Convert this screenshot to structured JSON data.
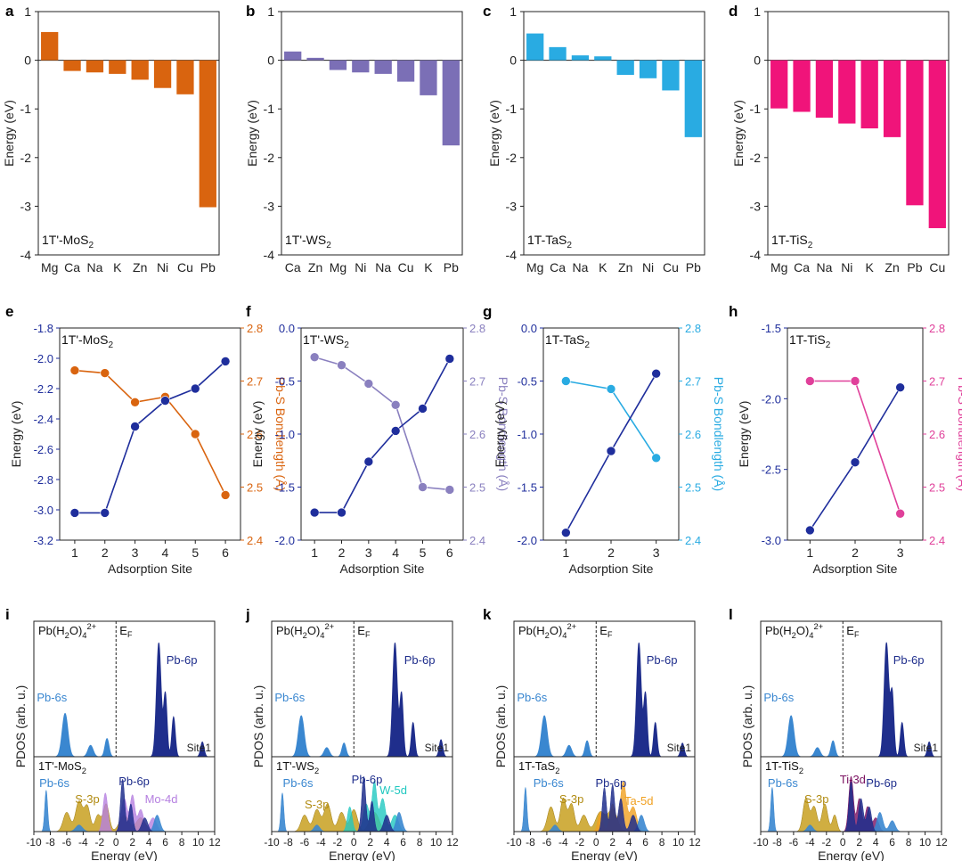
{
  "chart_data": [
    {
      "panel": "a",
      "type": "bar",
      "label": "1T'-MoS2",
      "label_parts": [
        "1T'-MoS",
        "2",
        ""
      ],
      "color": "#D9640F",
      "categories": [
        "Mg",
        "Ca",
        "Na",
        "K",
        "Zn",
        "Ni",
        "Cu",
        "Pb"
      ],
      "values": [
        0.58,
        -0.22,
        -0.25,
        -0.28,
        -0.4,
        -0.57,
        -0.7,
        -3.02
      ],
      "ylabel": "Energy (eV)",
      "ylim": [
        -4,
        1
      ],
      "yticks": [
        1,
        0,
        -1,
        -2,
        -3,
        -4
      ]
    },
    {
      "panel": "b",
      "type": "bar",
      "label": "1T'-WS2",
      "label_parts": [
        "1T'-WS",
        "2",
        ""
      ],
      "color": "#7B6FB6",
      "categories": [
        "Ca",
        "Zn",
        "Mg",
        "Ni",
        "Na",
        "Cu",
        "K",
        "Pb"
      ],
      "values": [
        0.18,
        0.05,
        -0.2,
        -0.25,
        -0.28,
        -0.44,
        -0.72,
        -1.75
      ],
      "ylabel": "Energy (eV)",
      "ylim": [
        -4,
        1
      ],
      "yticks": [
        1,
        0,
        -1,
        -2,
        -3,
        -4
      ]
    },
    {
      "panel": "c",
      "type": "bar",
      "label": "1T-TaS2",
      "label_parts": [
        "1T-TaS",
        "2",
        ""
      ],
      "color": "#29ABE2",
      "categories": [
        "Mg",
        "Ca",
        "Na",
        "K",
        "Zn",
        "Ni",
        "Cu",
        "Pb"
      ],
      "values": [
        0.55,
        0.27,
        0.1,
        0.08,
        -0.3,
        -0.37,
        -0.62,
        -1.58
      ],
      "ylabel": "Energy (eV)",
      "ylim": [
        -4,
        1
      ],
      "yticks": [
        1,
        0,
        -1,
        -2,
        -3,
        -4
      ]
    },
    {
      "panel": "d",
      "type": "bar",
      "label": "1T-TiS2",
      "label_parts": [
        "1T-TiS",
        "2",
        ""
      ],
      "color": "#F0147A",
      "categories": [
        "Mg",
        "Ca",
        "Na",
        "Ni",
        "K",
        "Zn",
        "Pb",
        "Cu"
      ],
      "values": [
        -0.99,
        -1.06,
        -1.18,
        -1.3,
        -1.4,
        -1.58,
        -2.98,
        -3.45
      ],
      "ylabel": "Energy (eV)",
      "ylim": [
        -4,
        1
      ],
      "yticks": [
        1,
        0,
        -1,
        -2,
        -3,
        -4
      ]
    },
    {
      "panel": "e",
      "type": "line",
      "label": "1T'-MoS2",
      "label_parts": [
        "1T'-MoS",
        "2",
        ""
      ],
      "x": [
        1,
        2,
        3,
        4,
        5,
        6
      ],
      "xlabel": "Adsorption Site",
      "energy": [
        -3.02,
        -3.02,
        -2.45,
        -2.28,
        -2.2,
        -2.02
      ],
      "bondlength": [
        2.72,
        2.715,
        2.66,
        2.67,
        2.6,
        2.485
      ],
      "ylabel_left": "Energy (eV)",
      "ylabel_right": "Pb-S Bondlength (Å)",
      "ylim_left": [
        -3.2,
        -1.8
      ],
      "yticks_left": [
        -1.8,
        -2.0,
        -2.2,
        -2.4,
        -2.6,
        -2.8,
        -3.0,
        -3.2
      ],
      "ylim_right": [
        2.4,
        2.8
      ],
      "yticks_right": [
        2.8,
        2.7,
        2.6,
        2.5,
        2.4
      ],
      "energy_color": "#1F2E9C",
      "bond_color": "#D9640F"
    },
    {
      "panel": "f",
      "type": "line",
      "label": "1T'-WS2",
      "label_parts": [
        "1T'-WS",
        "2",
        ""
      ],
      "x": [
        1,
        2,
        3,
        4,
        5,
        6
      ],
      "xlabel": "Adsorption Site",
      "energy": [
        -1.74,
        -1.74,
        -1.26,
        -0.97,
        -0.76,
        -0.29
      ],
      "bondlength": [
        2.745,
        2.73,
        2.695,
        2.655,
        2.5,
        2.495
      ],
      "ylabel_left": "Energy (eV)",
      "ylabel_right": "Pb-S Bondlength (Å)",
      "ylim_left": [
        -2.0,
        0.0
      ],
      "yticks_left": [
        0.0,
        -0.5,
        -1.0,
        -1.5,
        -2.0
      ],
      "ylim_right": [
        2.4,
        2.8
      ],
      "yticks_right": [
        2.8,
        2.7,
        2.6,
        2.5,
        2.4
      ],
      "energy_color": "#1F2E9C",
      "bond_color": "#8A80BF"
    },
    {
      "panel": "g",
      "type": "line",
      "label": "1T-TaS2",
      "label_parts": [
        "1T-TaS",
        "2",
        ""
      ],
      "x": [
        1,
        2,
        3
      ],
      "xlabel": "Adsorption Site",
      "energy": [
        -1.93,
        -1.16,
        -0.43
      ],
      "bondlength": [
        2.7,
        2.685,
        2.555
      ],
      "ylabel_left": "Energy (eV)",
      "ylabel_right": "Pb-S Bondlength (Å)",
      "ylim_left": [
        -2.0,
        0.0
      ],
      "yticks_left": [
        0.0,
        -0.5,
        -1.0,
        -1.5,
        -2.0
      ],
      "ylim_right": [
        2.4,
        2.8
      ],
      "yticks_right": [
        2.8,
        2.7,
        2.6,
        2.5,
        2.4
      ],
      "energy_color": "#1F2E9C",
      "bond_color": "#29ABE2"
    },
    {
      "panel": "h",
      "type": "line",
      "label": "1T-TiS2",
      "label_parts": [
        "1T-TiS",
        "2",
        ""
      ],
      "x": [
        1,
        2,
        3
      ],
      "xlabel": "Adsorption Site",
      "energy": [
        -2.93,
        -2.45,
        -1.92
      ],
      "bondlength": [
        2.7,
        2.7,
        2.45
      ],
      "ylabel_left": "Energy (eV)",
      "ylabel_right": "Pb-S Bondlength (Å)",
      "ylim_left": [
        -3.0,
        -1.5
      ],
      "yticks_left": [
        -1.5,
        -2.0,
        -2.5,
        -3.0
      ],
      "ylim_right": [
        2.4,
        2.8
      ],
      "yticks_right": [
        2.8,
        2.7,
        2.6,
        2.5,
        2.4
      ],
      "energy_color": "#1F2E9C",
      "bond_color": "#E0409A"
    },
    {
      "panel": "i",
      "type": "area",
      "xlabel": "Energy (eV)",
      "ylabel": "PDOS (arb. u.)",
      "xlim": [
        -10,
        12
      ],
      "xticks": [
        -10,
        -8,
        -6,
        -4,
        -2,
        0,
        2,
        4,
        6,
        8,
        10,
        12
      ],
      "top_title_parts": [
        "Pb(H",
        "2",
        "O)",
        "4",
        "2+"
      ],
      "ef_label": "EF",
      "site_label": "Site1",
      "bottom_label_parts": [
        "1T'-MoS",
        "2",
        ""
      ],
      "top_peaks": {
        "pb6s": [
          [
            -6.2,
            0.5,
            0.38
          ],
          [
            -3.1,
            0.45,
            0.1
          ],
          [
            -1.1,
            0.35,
            0.16
          ]
        ],
        "pb6p": [
          [
            5.2,
            0.4,
            1.0
          ],
          [
            6.0,
            0.3,
            0.55
          ],
          [
            7.0,
            0.3,
            0.35
          ],
          [
            10.5,
            0.3,
            0.13
          ]
        ]
      },
      "top_labels": [
        "Pb-6s",
        "Pb-6p"
      ],
      "bottom_labels": [
        "Pb-6s",
        "S-3p",
        "Pb-6p",
        "Mo-4d"
      ],
      "colors": {
        "pb6s": "#3A87D0",
        "pb6p": "#1F2E8C",
        "s3p": "#C8A020",
        "metal": "#B57FE0"
      }
    },
    {
      "panel": "j",
      "type": "area",
      "xlabel": "Energy (eV)",
      "ylabel": "PDOS (arb. u.)",
      "xlim": [
        -10,
        12
      ],
      "xticks": [
        -10,
        -8,
        -6,
        -4,
        -2,
        0,
        2,
        4,
        6,
        8,
        10,
        12
      ],
      "top_title_parts": [
        "Pb(H",
        "2",
        "O)",
        "4",
        "2+"
      ],
      "ef_label": "EF",
      "site_label": "Site1",
      "bottom_label_parts": [
        "1T'-WS",
        "2",
        ""
      ],
      "top_peaks": {
        "pb6s": [
          [
            -6.4,
            0.5,
            0.36
          ],
          [
            -3.3,
            0.45,
            0.08
          ],
          [
            -1.2,
            0.35,
            0.12
          ]
        ],
        "pb6p": [
          [
            5.0,
            0.4,
            1.0
          ],
          [
            5.8,
            0.3,
            0.55
          ],
          [
            7.2,
            0.3,
            0.3
          ],
          [
            10.6,
            0.3,
            0.15
          ]
        ]
      },
      "top_labels": [
        "Pb-6s",
        "Pb-6p"
      ],
      "bottom_labels": [
        "Pb-6s",
        "S-3p",
        "Pb-6p",
        "W-5d"
      ],
      "colors": {
        "pb6s": "#3A87D0",
        "pb6p": "#1F2E8C",
        "s3p": "#C8A020",
        "metal": "#20C8C0"
      }
    },
    {
      "panel": "k",
      "type": "area",
      "xlabel": "Energy (eV)",
      "ylabel": "PDOS (arb. u.)",
      "xlim": [
        -10,
        12
      ],
      "xticks": [
        -10,
        -8,
        -6,
        -4,
        -2,
        0,
        2,
        4,
        6,
        8,
        10,
        12
      ],
      "top_title_parts": [
        "Pb(H",
        "2",
        "O)",
        "4",
        "2+"
      ],
      "ef_label": "EF",
      "site_label": "Site1",
      "bottom_label_parts": [
        "1T-TaS",
        "2",
        ""
      ],
      "top_peaks": {
        "pb6s": [
          [
            -6.3,
            0.5,
            0.36
          ],
          [
            -3.3,
            0.45,
            0.1
          ],
          [
            -1.1,
            0.35,
            0.14
          ]
        ],
        "pb6p": [
          [
            5.2,
            0.4,
            1.0
          ],
          [
            6.0,
            0.3,
            0.55
          ],
          [
            7.2,
            0.3,
            0.3
          ],
          [
            10.5,
            0.3,
            0.12
          ]
        ]
      },
      "top_labels": [
        "Pb-6s",
        "Pb-6p"
      ],
      "bottom_labels": [
        "Pb-6s",
        "S-3p",
        "Pb-6p",
        "Ta-5d"
      ],
      "colors": {
        "pb6s": "#3A87D0",
        "pb6p": "#1F2E8C",
        "s3p": "#C8A020",
        "metal": "#F0A020"
      }
    },
    {
      "panel": "l",
      "type": "area",
      "xlabel": "Energy (eV)",
      "ylabel": "PDOS (arb. u.)",
      "xlim": [
        -10,
        12
      ],
      "xticks": [
        -10,
        -8,
        -6,
        -4,
        -2,
        0,
        2,
        4,
        6,
        8,
        10,
        12
      ],
      "top_title_parts": [
        "Pb(H",
        "2",
        "O)",
        "4",
        "2+"
      ],
      "ef_label": "EF",
      "site_label": "Site1",
      "bottom_label_parts": [
        "1T-TiS",
        "2",
        ""
      ],
      "top_peaks": {
        "pb6s": [
          [
            -6.3,
            0.5,
            0.36
          ],
          [
            -3.1,
            0.45,
            0.08
          ],
          [
            -1.2,
            0.35,
            0.14
          ]
        ],
        "pb6p": [
          [
            5.3,
            0.4,
            1.0
          ],
          [
            6.0,
            0.3,
            0.55
          ],
          [
            7.2,
            0.3,
            0.3
          ],
          [
            10.5,
            0.3,
            0.13
          ]
        ]
      },
      "top_labels": [
        "Pb-6s",
        "Pb-6p"
      ],
      "bottom_labels": [
        "Pb-6s",
        "S-3p",
        "Ti-3d",
        "Pb-6p"
      ],
      "colors": {
        "pb6s": "#3A87D0",
        "pb6p": "#1F2E8C",
        "s3p": "#C8A020",
        "metal": "#7A1060"
      }
    }
  ]
}
